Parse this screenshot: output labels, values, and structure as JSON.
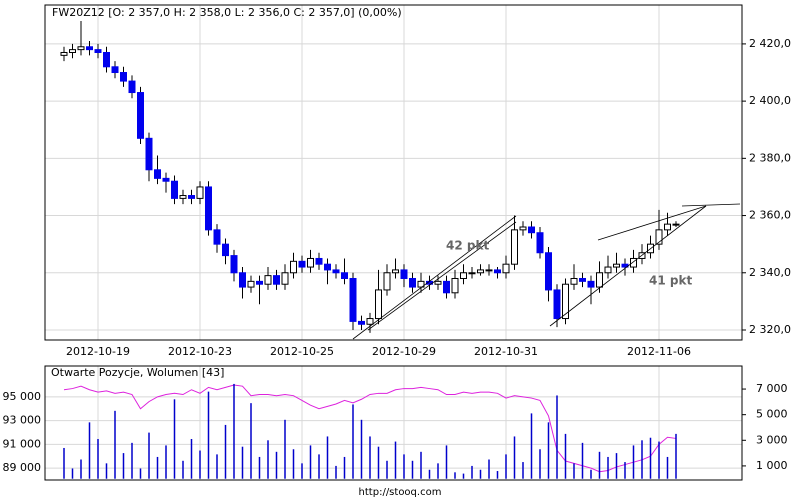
{
  "chart_data": [
    {
      "type": "candlestick",
      "title": "FW20Z12 [O: 2 357,0   H: 2 358,0   L: 2 356,0   C: 2 357,0] (0,00%)",
      "categories": [
        null,
        null,
        null,
        null,
        "2012-10-19",
        null,
        null,
        null,
        null,
        null,
        null,
        null,
        null,
        null,
        null,
        null,
        "2012-10-23",
        null,
        null,
        null,
        null,
        null,
        null,
        null,
        null,
        null,
        null,
        null,
        "2012-10-25",
        null,
        null,
        null,
        null,
        null,
        null,
        null,
        null,
        null,
        null,
        null,
        "2012-10-29",
        null,
        null,
        null,
        null,
        null,
        null,
        null,
        null,
        null,
        null,
        null,
        "2012-10-31",
        null,
        null,
        null,
        null,
        null,
        null,
        null,
        null,
        null,
        null,
        null,
        null,
        null,
        null,
        null,
        null,
        null,
        "2012-11-06",
        null,
        null
      ],
      "open": [
        2416,
        2417,
        2418,
        2419,
        2418,
        2417,
        2412,
        2410,
        2407,
        2403,
        2387,
        2376,
        2373,
        2372,
        2366,
        2367,
        2366,
        2370,
        2355,
        2350,
        2346,
        2340,
        2335,
        2337,
        2336,
        2339,
        2336,
        2340,
        2344,
        2342,
        2345,
        2343,
        2341,
        2340,
        2338,
        2323,
        2322,
        2324,
        2334,
        2340,
        2341,
        2338,
        2335,
        2337,
        2336,
        2337,
        2333,
        2338,
        2340,
        2340,
        2341,
        2341,
        2340,
        2343,
        2355,
        2356,
        2354,
        2347,
        2334,
        2324,
        2336,
        2338,
        2337,
        2335,
        2340,
        2342,
        2343,
        2342,
        2345,
        2347,
        2350,
        2355,
        2357
      ],
      "high": [
        2419,
        2420,
        2428,
        2421,
        2420,
        2419,
        2414,
        2412,
        2409,
        2405,
        2389,
        2381,
        2375,
        2374,
        2369,
        2369,
        2372,
        2372,
        2357,
        2352,
        2348,
        2342,
        2339,
        2339,
        2342,
        2341,
        2343,
        2347,
        2346,
        2348,
        2347,
        2345,
        2343,
        2345,
        2340,
        2325,
        2326,
        2341,
        2343,
        2345,
        2343,
        2340,
        2340,
        2339,
        2339,
        2339,
        2341,
        2343,
        2342,
        2343,
        2343,
        2342,
        2346,
        2360,
        2358,
        2358,
        2356,
        2349,
        2336,
        2338,
        2343,
        2340,
        2339,
        2344,
        2346,
        2347,
        2345,
        2348,
        2350,
        2353,
        2362,
        2361,
        2358
      ],
      "low": [
        2414,
        2415,
        2416,
        2416,
        2415,
        2410,
        2408,
        2405,
        2401,
        2385,
        2372,
        2371,
        2368,
        2364,
        2364,
        2364,
        2364,
        2353,
        2347,
        2343,
        2337,
        2331,
        2333,
        2329,
        2334,
        2334,
        2334,
        2338,
        2340,
        2340,
        2341,
        2336,
        2338,
        2336,
        2320,
        2320,
        2319,
        2322,
        2332,
        2338,
        2335,
        2333,
        2333,
        2334,
        2334,
        2331,
        2331,
        2336,
        2338,
        2339,
        2339,
        2338,
        2338,
        2341,
        2353,
        2352,
        2345,
        2330,
        2321,
        2322,
        2334,
        2335,
        2329,
        2333,
        2338,
        2340,
        2339,
        2340,
        2343,
        2345,
        2348,
        2353,
        2356
      ],
      "close": [
        2417,
        2418,
        2419,
        2418,
        2417,
        2412,
        2410,
        2407,
        2403,
        2387,
        2376,
        2373,
        2372,
        2366,
        2367,
        2366,
        2370,
        2355,
        2350,
        2346,
        2340,
        2335,
        2337,
        2336,
        2339,
        2336,
        2340,
        2344,
        2342,
        2345,
        2343,
        2341,
        2340,
        2338,
        2323,
        2322,
        2324,
        2334,
        2340,
        2341,
        2338,
        2335,
        2337,
        2336,
        2337,
        2333,
        2338,
        2340,
        2340,
        2341,
        2341,
        2340,
        2343,
        2355,
        2356,
        2354,
        2347,
        2334,
        2324,
        2336,
        2338,
        2337,
        2335,
        2340,
        2342,
        2343,
        2342,
        2345,
        2347,
        2350,
        2355,
        2357,
        2357
      ],
      "up_color": "#ffffff",
      "down_color": "#0000ee",
      "ylim": [
        2316.5,
        2433.6
      ],
      "yticks": [
        {
          "value": 2320,
          "label": "2 320,0"
        },
        {
          "value": 2340,
          "label": "2 340,0"
        },
        {
          "value": 2360,
          "label": "2 360,0"
        },
        {
          "value": 2380,
          "label": "2 380,0"
        },
        {
          "value": 2400,
          "label": "2 400,0"
        },
        {
          "value": 2420,
          "label": "2 420,0"
        }
      ],
      "grid": true,
      "annotations": [
        "42 pkt",
        "41 pkt"
      ]
    },
    {
      "type": "bar-line",
      "title": "Otwarte Pozycje, Wolumen [43]",
      "series": [
        {
          "type": "line",
          "color": "#dd22dd",
          "values": [
            95600,
            95700,
            95900,
            95600,
            95400,
            95500,
            95300,
            95400,
            95200,
            94000,
            94600,
            95000,
            95200,
            95300,
            95200,
            95600,
            95300,
            95800,
            95600,
            95800,
            96000,
            95900,
            95100,
            95200,
            95200,
            95100,
            95200,
            95100,
            94700,
            94300,
            94000,
            94200,
            94400,
            94700,
            94500,
            94800,
            95200,
            95300,
            95300,
            95600,
            95700,
            95700,
            95800,
            95700,
            95600,
            95200,
            95200,
            95400,
            95300,
            95400,
            95400,
            95300,
            94900,
            95100,
            95000,
            94900,
            94700,
            93400,
            90500,
            89600,
            89400,
            89200,
            89000,
            88700,
            88800,
            89100,
            89300,
            89500,
            89700,
            90000,
            91000,
            91600,
            91500
          ]
        },
        {
          "type": "bar",
          "axis": "y2",
          "color": "#0000cc",
          "values": [
            2400,
            800,
            1500,
            4400,
            3100,
            1200,
            5300,
            2000,
            2800,
            800,
            3600,
            1700,
            2600,
            6200,
            1400,
            3100,
            2200,
            6800,
            1900,
            4200,
            7400,
            2500,
            5900,
            1700,
            3000,
            2100,
            4600,
            2300,
            1200,
            2600,
            1900,
            3300,
            1000,
            1700,
            5800,
            4600,
            3300,
            2500,
            1400,
            2900,
            1900,
            1400,
            2100,
            700,
            1200,
            2600,
            500,
            400,
            1000,
            700,
            1500,
            600,
            1900,
            3300,
            1300,
            5100,
            2300,
            4400,
            6500,
            3500,
            1200,
            2800,
            700,
            2100,
            1700,
            2000,
            1300,
            2600,
            3000,
            3200,
            2900,
            1700,
            3500
          ]
        }
      ],
      "ylim": [
        88000,
        97600
      ],
      "yticks": [
        {
          "value": 89000,
          "label": "89 000"
        },
        {
          "value": 91000,
          "label": "91 000"
        },
        {
          "value": 93000,
          "label": "93 000"
        },
        {
          "value": 95000,
          "label": "95 000"
        }
      ],
      "y2lim": [
        -100,
        8800
      ],
      "y2ticks": [
        {
          "value": 1000,
          "label": "1 000"
        },
        {
          "value": 3000,
          "label": "3 000"
        },
        {
          "value": 5000,
          "label": "5 000"
        },
        {
          "value": 7000,
          "label": "7 000"
        }
      ],
      "grid": true,
      "source": "http://stooq.com"
    }
  ]
}
